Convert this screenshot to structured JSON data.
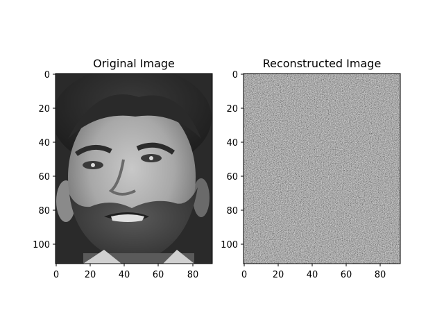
{
  "figure": {
    "panels": [
      {
        "title": "Original Image",
        "image_description": "grayscale face photograph",
        "x_ticks": [
          "0",
          "20",
          "40",
          "60",
          "80"
        ],
        "y_ticks": [
          "0",
          "20",
          "40",
          "60",
          "80",
          "100"
        ]
      },
      {
        "title": "Reconstructed Image",
        "image_description": "noisy grayscale reconstruction of the face",
        "x_ticks": [
          "0",
          "20",
          "40",
          "60",
          "80"
        ],
        "y_ticks": [
          "0",
          "20",
          "40",
          "60",
          "80",
          "100"
        ]
      }
    ]
  }
}
